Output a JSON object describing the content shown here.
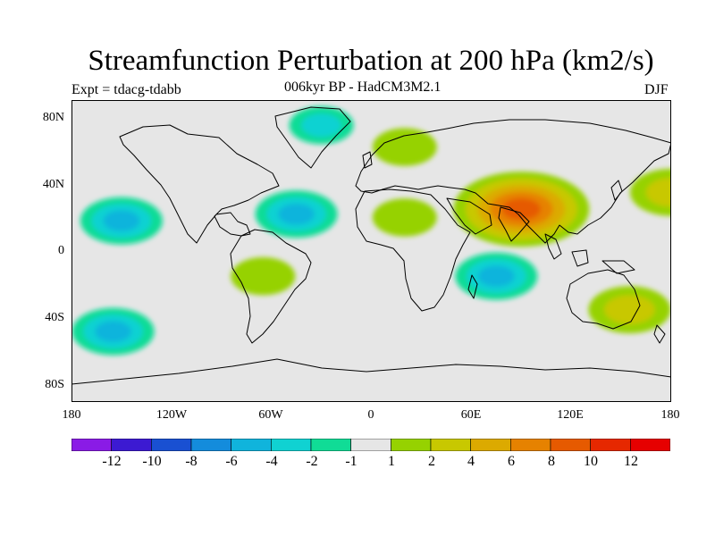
{
  "title": "Streamfunction Perturbation at 200 hPa (km2/s)",
  "experiment": "Expt = tdacg-tdabb",
  "subtitle": "006kyr BP - HadCM3M2.1",
  "season": "DJF",
  "lat_labels": [
    "80N",
    "40N",
    "0",
    "40S",
    "80S"
  ],
  "lon_labels": [
    "180",
    "120W",
    "60W",
    "0",
    "60E",
    "120E",
    "180"
  ],
  "colorbar": {
    "labels": [
      "-12",
      "-10",
      "-8",
      "-6",
      "-4",
      "-2",
      "-1",
      "1",
      "2",
      "4",
      "6",
      "8",
      "10",
      "12"
    ],
    "colors": [
      "#8a1be6",
      "#3c1ad2",
      "#1950d2",
      "#148cdc",
      "#10b4dc",
      "#10d2d2",
      "#10dc96",
      "#e6e6e6",
      "#96d200",
      "#c8c800",
      "#dcaa00",
      "#e68200",
      "#e65a00",
      "#e62800",
      "#e60000"
    ]
  },
  "chart_data": {
    "type": "heatmap",
    "title": "Streamfunction Perturbation at 200 hPa (km2/s)",
    "field": "streamfunction perturbation",
    "units": "km2/s",
    "level": "200 hPa",
    "season": "DJF",
    "projection": "cylindrical equidistant",
    "xlim": [
      -180,
      180
    ],
    "ylim": [
      -90,
      90
    ],
    "contour_levels": [
      -12,
      -10,
      -8,
      -6,
      -4,
      -2,
      -1,
      1,
      2,
      4,
      6,
      8,
      10,
      12
    ],
    "anomalies": [
      {
        "region": "South Asia / Tibetan Plateau",
        "lon": 90,
        "lat": 25,
        "peak": 10
      },
      {
        "region": "Northern Europe / Scandinavia",
        "lon": 20,
        "lat": 62,
        "peak": 2
      },
      {
        "region": "North Africa",
        "lon": 20,
        "lat": 20,
        "peak": 2
      },
      {
        "region": "North Pacific dateline",
        "lon": 180,
        "lat": 35,
        "peak": 4
      },
      {
        "region": "Eastern tropical Pacific",
        "lon": -150,
        "lat": 18,
        "peak": -4
      },
      {
        "region": "North Atlantic",
        "lon": -45,
        "lat": 22,
        "peak": -4
      },
      {
        "region": "Indian Ocean",
        "lon": 75,
        "lat": -15,
        "peak": -4
      },
      {
        "region": "Arctic",
        "lon": -30,
        "lat": 75,
        "peak": -2
      },
      {
        "region": "South Pacific",
        "lon": -155,
        "lat": -48,
        "peak": -4
      },
      {
        "region": "South America",
        "lon": -65,
        "lat": -15,
        "peak": 2
      },
      {
        "region": "Southern Ocean",
        "lon": 155,
        "lat": -35,
        "peak": 4
      }
    ]
  }
}
